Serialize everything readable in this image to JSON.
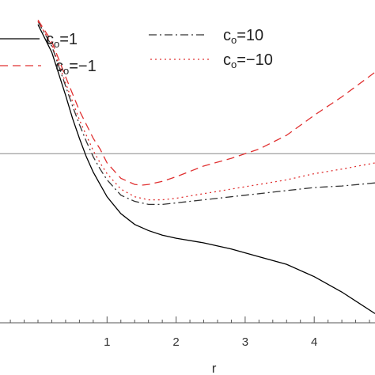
{
  "chart_data": {
    "type": "line",
    "title": "",
    "xlabel": "r",
    "ylabel": "",
    "xlim": [
      -0.55,
      4.88
    ],
    "ylim": [
      -1.1,
      1.0
    ],
    "grid": false,
    "legend_position": "top",
    "x_ticks": [
      "1",
      "2",
      "3",
      "4"
    ],
    "x_tick_values": [
      1,
      2,
      3,
      4
    ],
    "reference_line": {
      "y": 0,
      "color": "#888888"
    },
    "legend": [
      {
        "name_prefix": "c",
        "name_sub": "o",
        "name_suffix": "=1"
      },
      {
        "name_prefix": "c",
        "name_sub": "o",
        "name_suffix": "=−1"
      },
      {
        "name_prefix": "c",
        "name_sub": "o",
        "name_suffix": "=10"
      },
      {
        "name_prefix": "c",
        "name_sub": "o",
        "name_suffix": "=−10"
      }
    ],
    "series": [
      {
        "name": "co=1",
        "color": "#000000",
        "dash": "solid",
        "x": [
          0.0,
          0.2,
          0.4,
          0.5,
          0.6,
          0.7,
          0.8,
          0.9,
          1.0,
          1.2,
          1.4,
          1.6,
          1.8,
          2.0,
          2.4,
          2.8,
          3.2,
          3.6,
          4.0,
          4.4,
          4.88
        ],
        "y": [
          0.84,
          0.66,
          0.38,
          0.23,
          0.1,
          -0.02,
          -0.12,
          -0.2,
          -0.28,
          -0.39,
          -0.46,
          -0.5,
          -0.53,
          -0.55,
          -0.58,
          -0.62,
          -0.67,
          -0.72,
          -0.8,
          -0.9,
          -1.04
        ]
      },
      {
        "name": "co=-1",
        "color": "#e03030",
        "dash": "dashed",
        "x": [
          0.0,
          0.2,
          0.4,
          0.5,
          0.6,
          0.7,
          0.8,
          0.9,
          1.0,
          1.2,
          1.4,
          1.5,
          1.6,
          1.8,
          2.0,
          2.4,
          2.8,
          3.2,
          3.6,
          4.0,
          4.4,
          4.88
        ],
        "y": [
          0.87,
          0.73,
          0.5,
          0.39,
          0.28,
          0.19,
          0.1,
          0.03,
          -0.06,
          -0.16,
          -0.2,
          -0.205,
          -0.2,
          -0.18,
          -0.15,
          -0.08,
          -0.03,
          0.03,
          0.12,
          0.25,
          0.37,
          0.53
        ]
      },
      {
        "name": "co=10",
        "color": "#333333",
        "dash": "dashdot",
        "x": [
          0.0,
          0.2,
          0.4,
          0.5,
          0.6,
          0.7,
          0.8,
          0.9,
          1.0,
          1.2,
          1.4,
          1.6,
          1.8,
          2.0,
          2.4,
          2.8,
          3.2,
          3.6,
          4.0,
          4.4,
          4.88
        ],
        "y": [
          0.86,
          0.7,
          0.44,
          0.31,
          0.19,
          0.08,
          -0.02,
          -0.1,
          -0.17,
          -0.27,
          -0.31,
          -0.33,
          -0.33,
          -0.32,
          -0.3,
          -0.28,
          -0.26,
          -0.24,
          -0.22,
          -0.21,
          -0.19
        ]
      },
      {
        "name": "co=-10",
        "color": "#e03030",
        "dash": "dotted",
        "x": [
          0.0,
          0.2,
          0.4,
          0.5,
          0.6,
          0.7,
          0.8,
          0.9,
          1.0,
          1.2,
          1.4,
          1.6,
          1.8,
          2.0,
          2.4,
          2.8,
          3.2,
          3.6,
          4.0,
          4.4,
          4.88
        ],
        "y": [
          0.86,
          0.71,
          0.46,
          0.34,
          0.22,
          0.12,
          0.02,
          -0.06,
          -0.13,
          -0.23,
          -0.28,
          -0.3,
          -0.3,
          -0.29,
          -0.26,
          -0.23,
          -0.2,
          -0.17,
          -0.13,
          -0.1,
          -0.06
        ]
      }
    ]
  }
}
